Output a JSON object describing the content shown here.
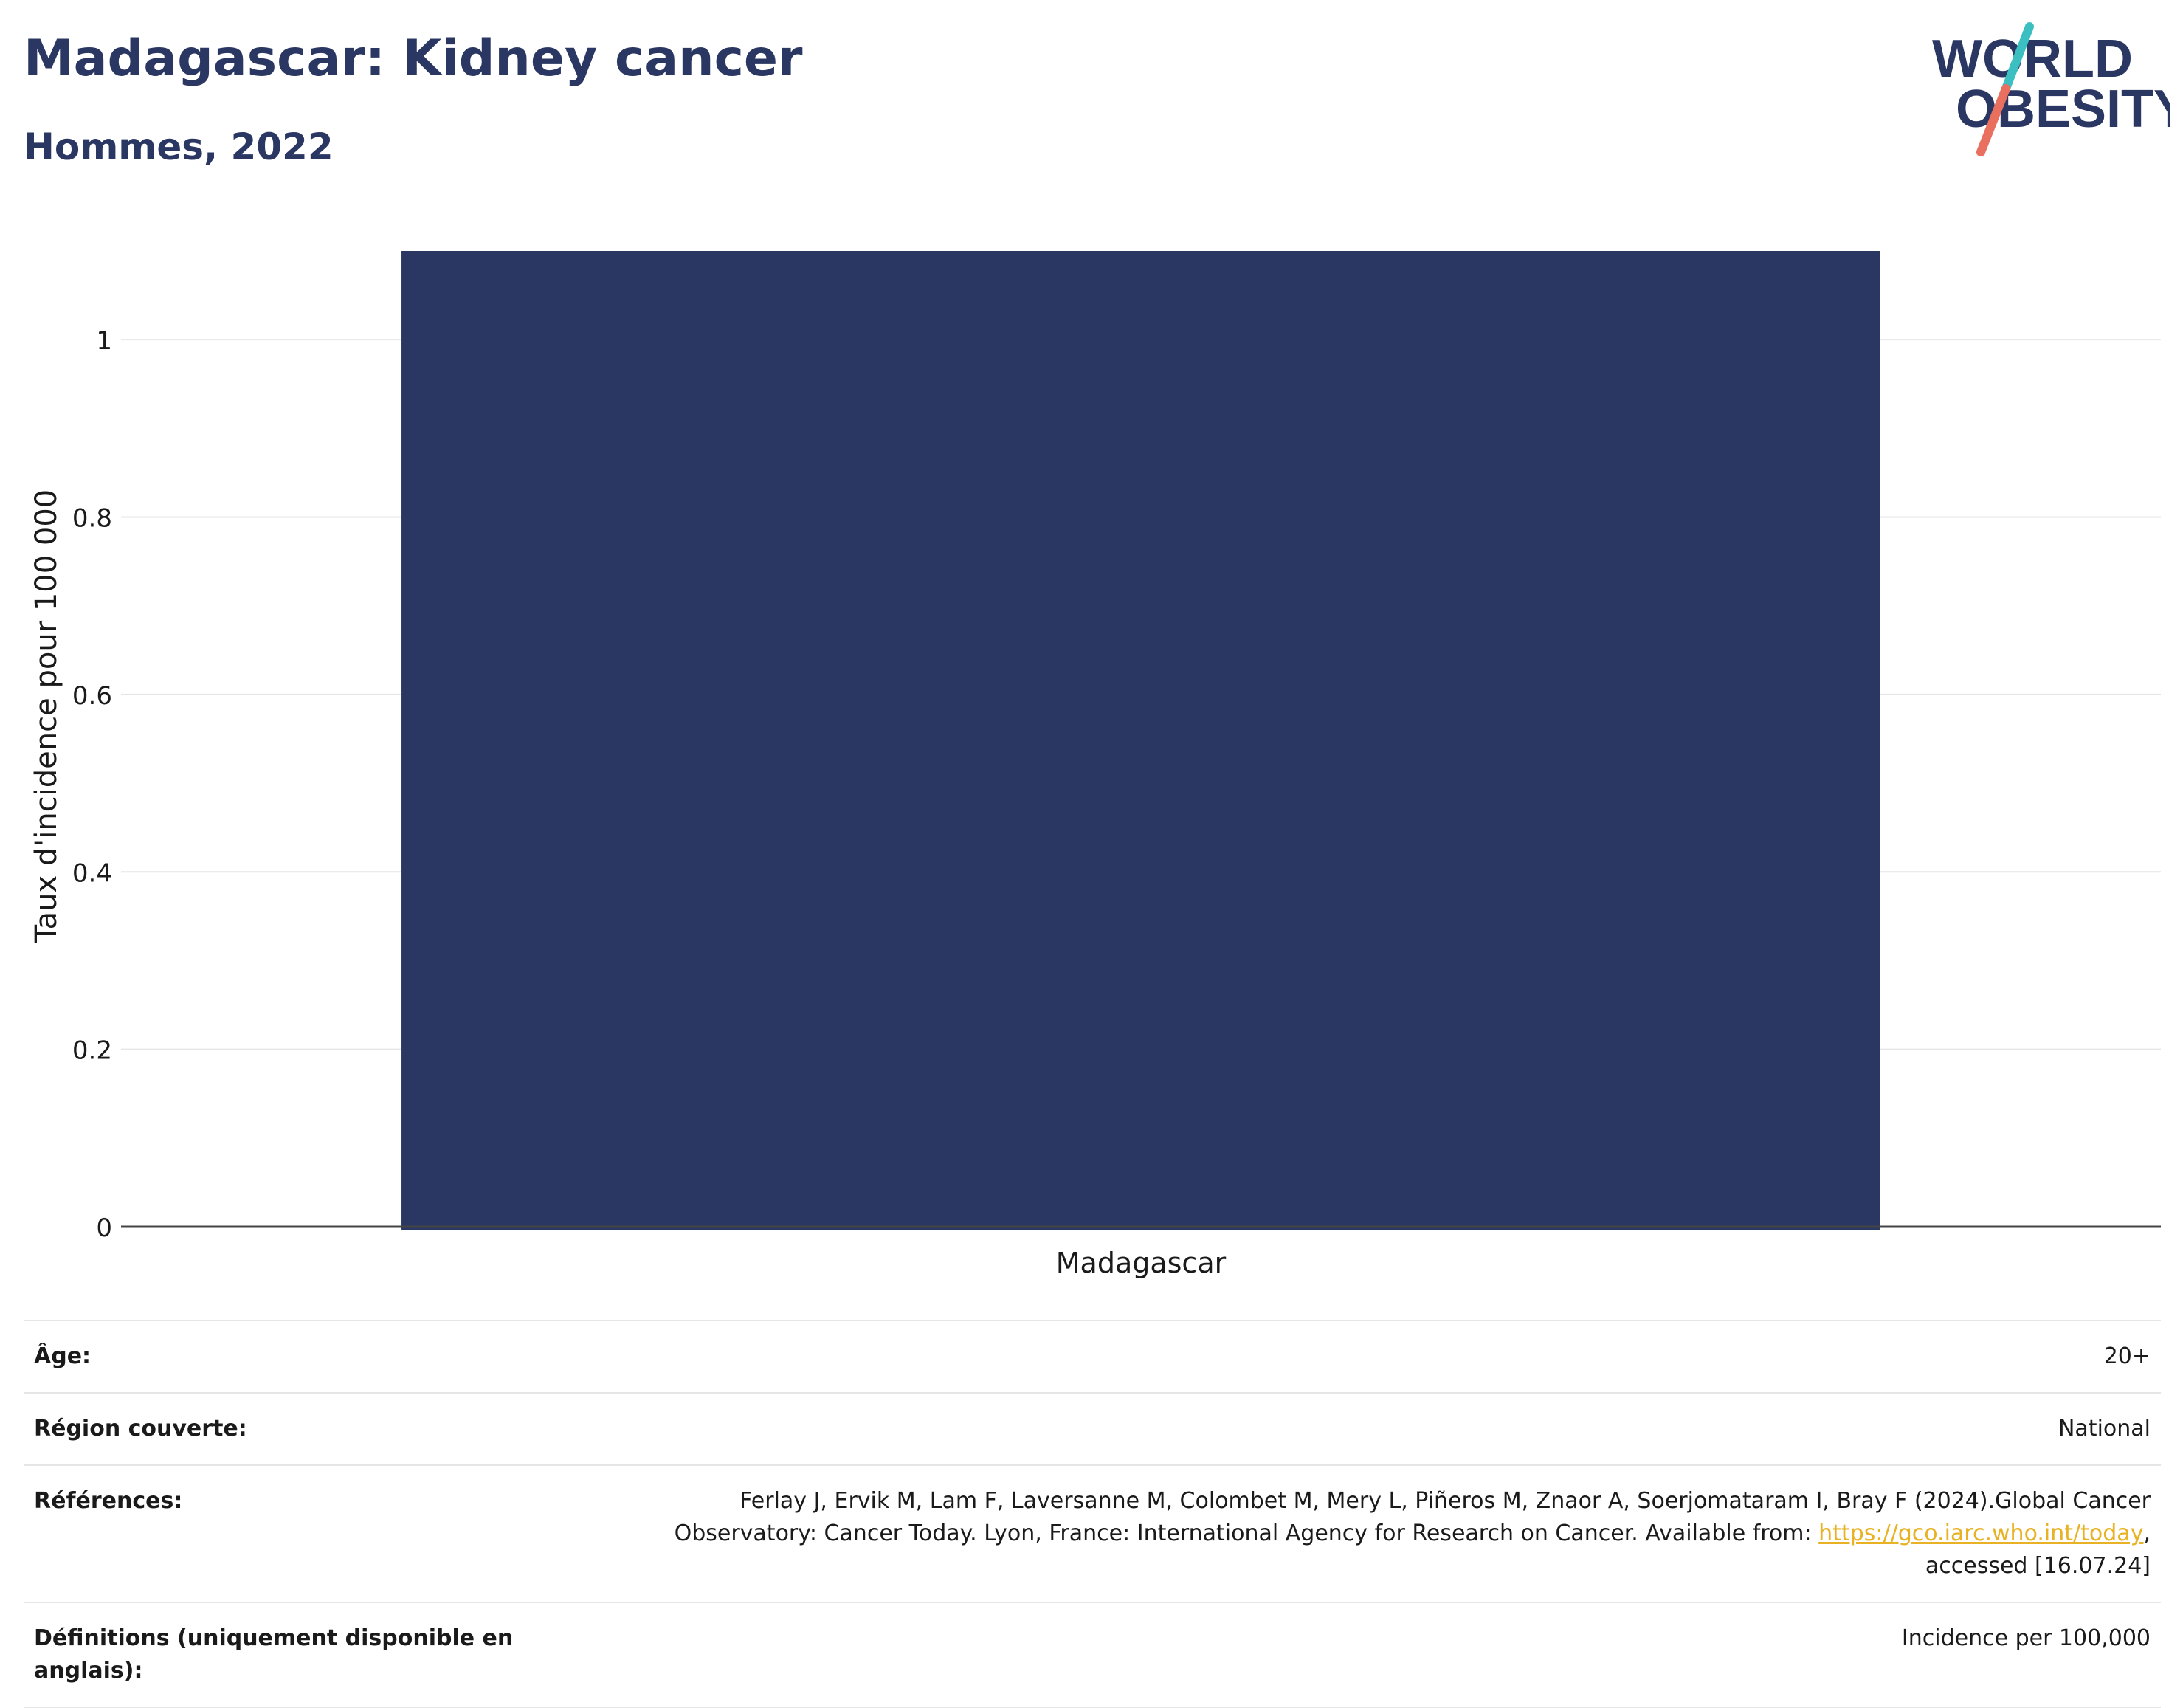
{
  "header": {
    "title": "Madagascar: Kidney cancer",
    "subtitle": "Hommes, 2022"
  },
  "logo": {
    "line1": "WORLD",
    "line2": "OBESITY",
    "slash_top_color": "#3bbfc0",
    "slash_bottom_color": "#e9705f",
    "text_color": "#2b3763"
  },
  "chart_data": {
    "type": "bar",
    "categories": [
      "Madagascar"
    ],
    "values": [
      1.1
    ],
    "title": "Madagascar: Kidney cancer",
    "xlabel": "",
    "ylabel": "Taux d'incidence pour 100 000",
    "ylim": [
      0,
      1.1
    ],
    "yticks": [
      0,
      0.2,
      0.4,
      0.6,
      0.8,
      1
    ],
    "ytick_labels": [
      "0",
      "0.2",
      "0.4",
      "0.6",
      "0.8",
      "1"
    ],
    "bar_color": "#2b3763",
    "grid": true,
    "legend": "none"
  },
  "meta": {
    "age_label": "Âge:",
    "age_value": "20+",
    "region_label": "Région couverte:",
    "region_value": "National",
    "references_label": "Références:",
    "references_text_1": "Ferlay J, Ervik M, Lam F, Laversanne M, Colombet M, Mery L, Piñeros M, Znaor A, Soerjomataram I, Bray F (2024).Global Cancer",
    "references_text_2": "Observatory: Cancer Today. Lyon, France: International Agency for Research on Cancer. Available from: ",
    "references_link": "https://gco.iarc.who.int/today",
    "references_text_3": ",",
    "references_text_4": "accessed [16.07.24]",
    "definitions_label": "Définitions (uniquement disponible en anglais):",
    "definitions_value": "Incidence per 100,000"
  }
}
